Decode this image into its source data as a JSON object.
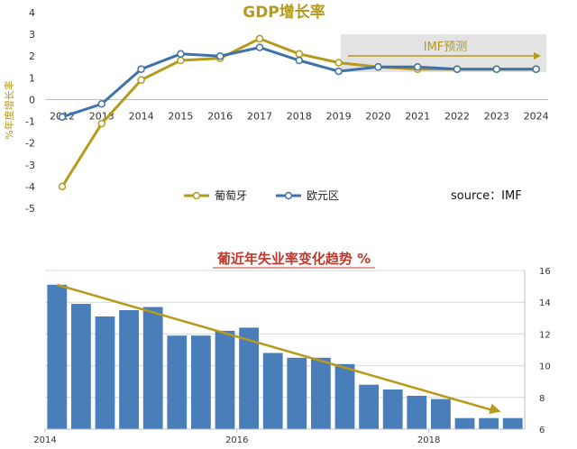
{
  "colors": {
    "portugal": "#b59a1b",
    "euro": "#3f72a8",
    "bar": "#4a7ebb",
    "trend": "#b79a19",
    "title_red": "#c0392b",
    "forecast_band": "#e3e3e3"
  },
  "chart_data": [
    {
      "type": "line",
      "title": "GDP增长率",
      "ylabel": "%年度增长率",
      "x": [
        "2012",
        "2013",
        "2014",
        "2015",
        "2016",
        "2017",
        "2018",
        "2019",
        "2020",
        "2021",
        "2022",
        "2023",
        "2024"
      ],
      "ylim": [
        -5,
        4
      ],
      "yticks": [
        "-5",
        "-4",
        "-3",
        "-2",
        "-1",
        "0",
        "1",
        "2",
        "3",
        "4"
      ],
      "series": [
        {
          "name": "葡萄牙",
          "values": [
            -4.0,
            -1.1,
            0.9,
            1.8,
            1.9,
            2.8,
            2.1,
            1.7,
            1.5,
            1.4,
            1.4,
            1.4,
            1.4
          ]
        },
        {
          "name": "欧元区",
          "values": [
            -0.8,
            -0.2,
            1.4,
            2.1,
            2.0,
            2.4,
            1.8,
            1.3,
            1.5,
            1.5,
            1.4,
            1.4,
            1.4
          ]
        }
      ],
      "annotation": "IMF预测",
      "source": "source：IMF",
      "legend": "bottom-left",
      "grid": false
    },
    {
      "type": "bar",
      "title": "葡近年失业率变化趋势 %",
      "x_ticks": [
        "2014",
        "2016",
        "2018"
      ],
      "yticks": [
        "6",
        "8",
        "10",
        "12",
        "14",
        "16"
      ],
      "ylim": [
        6,
        16
      ],
      "values": [
        15.1,
        13.9,
        13.1,
        13.5,
        13.7,
        11.9,
        11.9,
        12.2,
        12.4,
        10.8,
        10.5,
        10.5,
        10.1,
        8.8,
        8.5,
        8.1,
        7.9,
        6.7,
        6.7,
        6.7
      ],
      "trend": {
        "from": 15.1,
        "to": 7.1
      },
      "grid": true
    }
  ]
}
